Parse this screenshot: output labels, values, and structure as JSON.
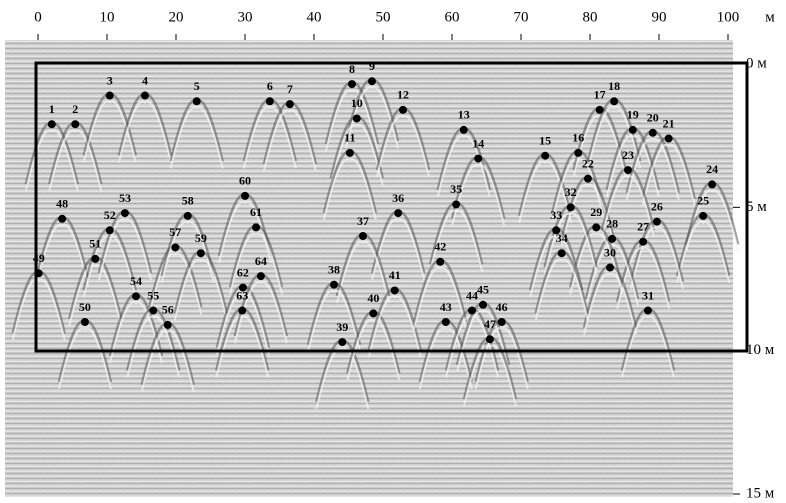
{
  "chart_data": {
    "type": "scatter",
    "x_unit": "м",
    "xlim": [
      0,
      100
    ],
    "xticks": [
      0,
      10,
      20,
      30,
      40,
      50,
      60,
      70,
      80,
      90,
      100
    ],
    "ylim": [
      0,
      15
    ],
    "y_inverted": true,
    "yticks": [
      {
        "value": 0,
        "label": "0 м"
      },
      {
        "value": 5,
        "label": "5 м"
      },
      {
        "value": 10,
        "label": "10 м"
      },
      {
        "value": 15,
        "label": "15 м"
      }
    ],
    "color": "#000000",
    "labels": [
      "1",
      "2",
      "3",
      "4",
      "5",
      "6",
      "7",
      "8",
      "9",
      "10",
      "11",
      "12",
      "13",
      "14",
      "15",
      "16",
      "17",
      "18",
      "19",
      "20",
      "21",
      "22",
      "23",
      "24",
      "25",
      "26",
      "27",
      "28",
      "29",
      "30",
      "31",
      "32",
      "33",
      "34",
      "35",
      "36",
      "37",
      "38",
      "39",
      "40",
      "41",
      "42",
      "43",
      "44",
      "45",
      "46",
      "47",
      "48",
      "49",
      "50",
      "51",
      "52",
      "53",
      "54",
      "55",
      "56",
      "57",
      "58",
      "59",
      "60",
      "61",
      "62",
      "63",
      "64"
    ],
    "x": [
      2.0,
      5.4,
      10.4,
      15.5,
      23.0,
      33.6,
      36.5,
      45.5,
      48.4,
      46.2,
      45.2,
      52.9,
      61.7,
      63.8,
      73.5,
      78.3,
      81.4,
      83.5,
      86.2,
      89.1,
      91.4,
      79.7,
      85.5,
      97.7,
      96.4,
      89.7,
      87.7,
      83.2,
      80.9,
      82.9,
      88.4,
      77.2,
      75.1,
      75.9,
      60.6,
      52.2,
      47.1,
      42.9,
      44.1,
      48.6,
      51.7,
      58.3,
      59.1,
      62.9,
      64.5,
      67.2,
      65.5,
      3.5,
      0.1,
      6.8,
      8.3,
      10.4,
      12.6,
      14.2,
      16.7,
      18.8,
      19.9,
      21.7,
      23.6,
      30.0,
      31.6,
      29.7,
      29.6,
      32.3
    ],
    "values": [
      2.1,
      2.1,
      1.1,
      1.1,
      1.3,
      1.3,
      1.4,
      0.7,
      0.6,
      1.9,
      3.1,
      1.6,
      2.3,
      3.3,
      3.2,
      3.1,
      1.6,
      1.3,
      2.3,
      2.4,
      2.6,
      4.0,
      3.7,
      4.2,
      5.3,
      5.5,
      6.2,
      6.1,
      5.7,
      7.1,
      8.6,
      5.0,
      5.8,
      6.6,
      4.9,
      5.2,
      6.0,
      7.7,
      9.7,
      8.7,
      7.9,
      6.9,
      9.0,
      8.6,
      8.4,
      9.0,
      9.6,
      5.4,
      7.3,
      9.0,
      6.8,
      5.8,
      5.2,
      8.1,
      8.6,
      9.1,
      6.4,
      5.3,
      6.6,
      4.6,
      5.7,
      7.8,
      8.6,
      7.4
    ]
  }
}
